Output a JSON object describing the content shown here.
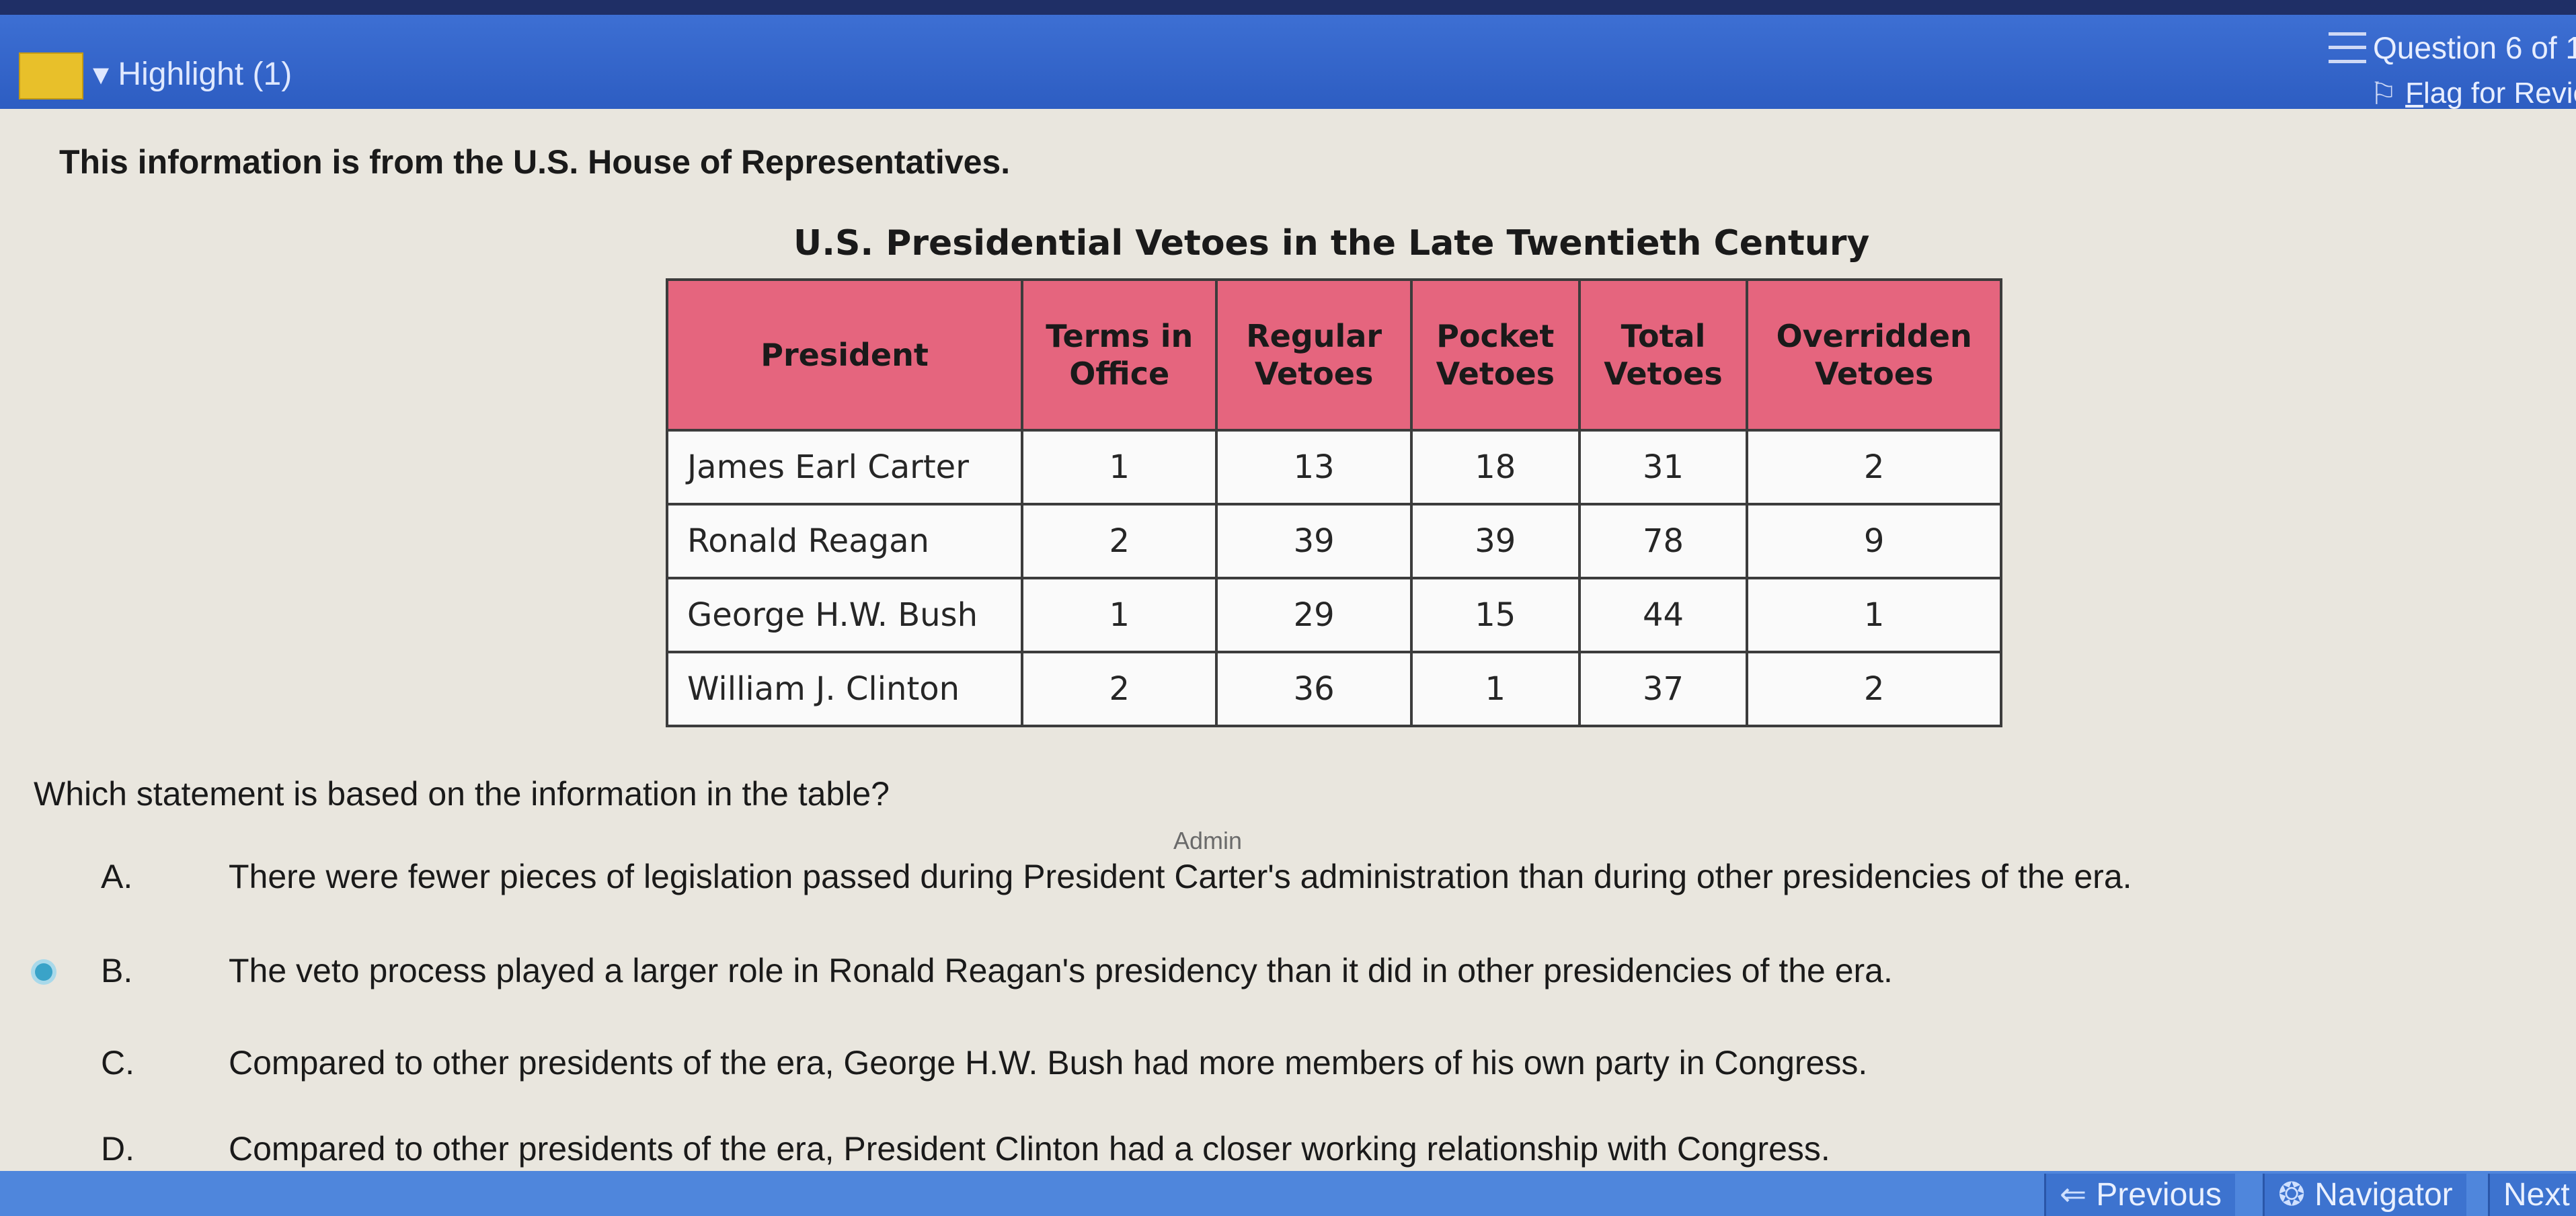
{
  "header": {
    "highlight_label": "▾ Highlight (1)",
    "question_counter": "Question 6 of 1",
    "flag_first": "F",
    "flag_rest": "lag for Revie"
  },
  "source_text": "This information is from the U.S. House of Representatives.",
  "table": {
    "title": "U.S. Presidential Vetoes in the Late Twentieth Century",
    "columns": [
      "President",
      "Terms in Office",
      "Regular Vetoes",
      "Pocket Vetoes",
      "Total Vetoes",
      "Overridden Vetoes"
    ],
    "rows": [
      [
        "James Earl Carter",
        "1",
        "13",
        "18",
        "31",
        "2"
      ],
      [
        "Ronald Reagan",
        "2",
        "39",
        "39",
        "78",
        "9"
      ],
      [
        "George H.W. Bush",
        "1",
        "29",
        "15",
        "44",
        "1"
      ],
      [
        "William J. Clinton",
        "2",
        "36",
        "1",
        "37",
        "2"
      ]
    ]
  },
  "question": "Which statement is based on the information in the table?",
  "admin_label": "Admin",
  "choices": [
    {
      "letter": "A.",
      "text": "There were fewer pieces of legislation passed during President Carter's administration than during other presidencies of the era."
    },
    {
      "letter": "B.",
      "text": "The veto process played a larger role in Ronald Reagan's presidency than it did in other presidencies of the era."
    },
    {
      "letter": "C.",
      "text": "Compared to other presidents of the era, George H.W. Bush had more members of his own party in Congress."
    },
    {
      "letter": "D.",
      "text": "Compared to other presidents of the era, President Clinton had a closer working relationship with Congress."
    }
  ],
  "footer": {
    "previous": "Previous",
    "navigator": "Navigator",
    "next": "Next"
  },
  "colors": {
    "header": "#2d5dc2",
    "table_header": "#e5657e",
    "highlight": "#e8c02a",
    "footer": "#4f86dc"
  },
  "icons": [
    "menu-icon",
    "flag-icon",
    "arrow-left-icon",
    "navigator-icon",
    "radio-dot-icon"
  ]
}
